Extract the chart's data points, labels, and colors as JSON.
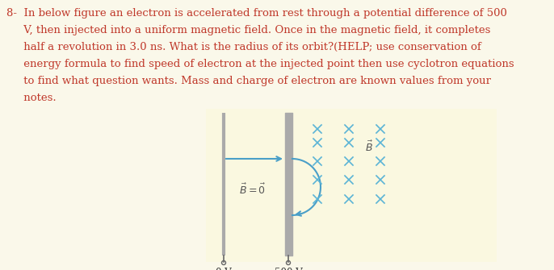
{
  "bg_color": "#faf8ea",
  "text_color": "#c0392b",
  "plate_color": "#aaaaaa",
  "electron_line_color": "#4a9fc8",
  "cross_color": "#5ab4d6",
  "fig_bg_color": "#faf8e0",
  "text_lines": [
    "8-  In below figure an electron is accelerated from rest through a potential difference of 500",
    "     V, then injected into a uniform magnetic field. Once in the magnetic field, it completes",
    "     half a revolution in 3.0 ns. What is the radius of its orbit?(HELP; use conservation of",
    "     energy formula to find speed of electron at the injected point then use cyclotron equations",
    "     to find what question wants. Mass and charge of electron are known values from your",
    "     notes."
  ],
  "font_size_text": 9.5,
  "font_size_label": 8.5,
  "font_size_math": 9.0
}
